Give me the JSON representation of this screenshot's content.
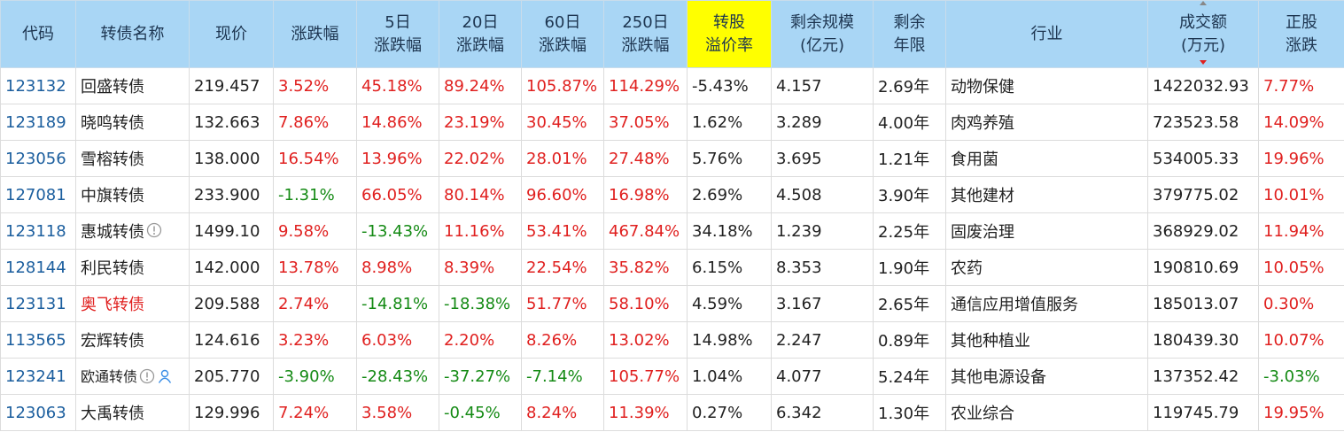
{
  "table": {
    "headers": [
      [
        "代码"
      ],
      [
        "转债名称"
      ],
      [
        "现价"
      ],
      [
        "涨跌幅"
      ],
      [
        "5日",
        "涨跌幅"
      ],
      [
        "20日",
        "涨跌幅"
      ],
      [
        "60日",
        "涨跌幅"
      ],
      [
        "250日",
        "涨跌幅"
      ],
      [
        "转股",
        "溢价率"
      ],
      [
        "剩余规模",
        "(亿元)"
      ],
      [
        "剩余",
        "年限"
      ],
      [
        "行业"
      ],
      [
        "成交额",
        "(万元)"
      ],
      [
        "正股",
        "涨跌"
      ]
    ],
    "highlight_header": 8,
    "highlight_header_color": "#ffff00",
    "sort_column": 12,
    "sort_color": "#e0201f",
    "header_color": "#a9d6f5",
    "code_color": "#1b5e9e",
    "up_color": "#e0201f",
    "down_color": "#148a14",
    "rows": [
      {
        "cells": [
          "123132",
          "回盛转债",
          "219.457",
          "3.52%",
          "45.18%",
          "89.24%",
          "105.87%",
          "114.29%",
          "-5.43%",
          "4.157",
          "2.69年",
          "动物保健",
          "1422032.93",
          "7.77%"
        ]
      },
      {
        "cells": [
          "123189",
          "晓鸣转债",
          "132.663",
          "7.86%",
          "14.86%",
          "23.19%",
          "30.45%",
          "37.05%",
          "1.62%",
          "3.289",
          "4.00年",
          "肉鸡养殖",
          "723523.58",
          "14.09%"
        ]
      },
      {
        "cells": [
          "123056",
          "雪榕转债",
          "138.000",
          "16.54%",
          "13.96%",
          "22.02%",
          "28.01%",
          "27.48%",
          "5.76%",
          "3.695",
          "1.21年",
          "食用菌",
          "534005.33",
          "19.96%"
        ]
      },
      {
        "cells": [
          "127081",
          "中旗转债",
          "233.900",
          "-1.31%",
          "66.05%",
          "80.14%",
          "96.60%",
          "16.98%",
          "2.69%",
          "4.508",
          "3.90年",
          "其他建材",
          "379775.02",
          "10.01%"
        ]
      },
      {
        "cells": [
          "123118",
          "惠城转债",
          "1499.10",
          "9.58%",
          "-13.43%",
          "11.16%",
          "53.41%",
          "467.84%",
          "34.18%",
          "1.239",
          "2.25年",
          "固废治理",
          "368929.02",
          "11.94%"
        ],
        "badges": [
          "info"
        ]
      },
      {
        "cells": [
          "128144",
          "利民转债",
          "142.000",
          "13.78%",
          "8.98%",
          "8.39%",
          "22.54%",
          "35.82%",
          "6.15%",
          "8.353",
          "1.90年",
          "农药",
          "190810.69",
          "10.05%"
        ]
      },
      {
        "cells": [
          "123131",
          "奥飞转债",
          "209.588",
          "2.74%",
          "-14.81%",
          "-18.38%",
          "51.77%",
          "58.10%",
          "4.59%",
          "3.167",
          "2.65年",
          "通信应用增值服务",
          "185013.07",
          "0.30%"
        ],
        "name_color": "#e0201f"
      },
      {
        "cells": [
          "113565",
          "宏辉转债",
          "124.616",
          "3.23%",
          "6.03%",
          "2.20%",
          "8.26%",
          "13.02%",
          "14.98%",
          "2.247",
          "0.89年",
          "其他种植业",
          "180439.30",
          "10.07%"
        ]
      },
      {
        "cells": [
          "123241",
          "欧通转债",
          "205.770",
          "-3.90%",
          "-28.43%",
          "-37.27%",
          "-7.14%",
          "105.77%",
          "1.04%",
          "4.077",
          "5.24年",
          "其他电源设备",
          "137352.42",
          "-3.03%"
        ],
        "badges": [
          "info",
          "user"
        ]
      },
      {
        "cells": [
          "123063",
          "大禹转债",
          "129.996",
          "7.24%",
          "3.58%",
          "-0.45%",
          "8.24%",
          "11.39%",
          "0.27%",
          "6.342",
          "1.30年",
          "农业综合",
          "119745.79",
          "19.95%"
        ]
      }
    ]
  }
}
